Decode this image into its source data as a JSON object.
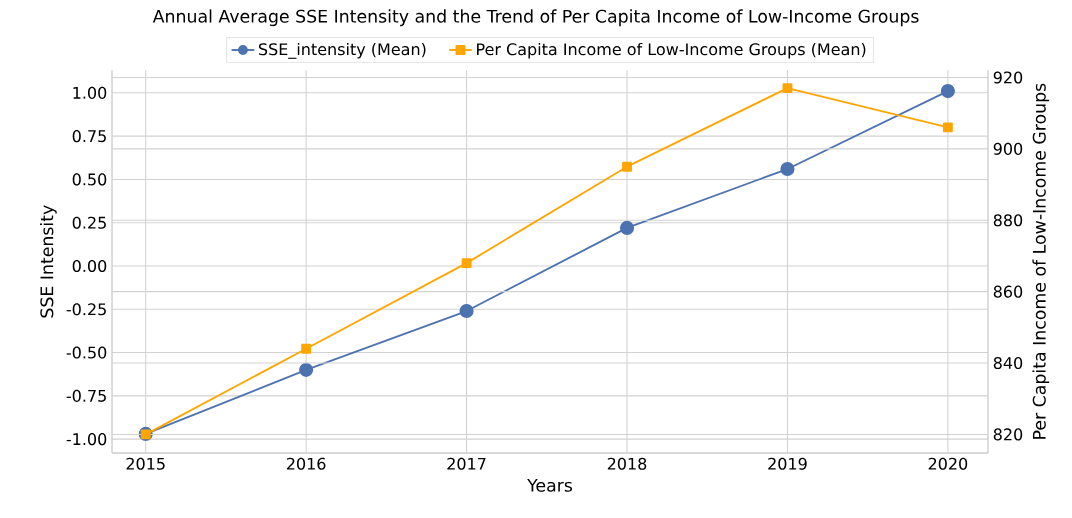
{
  "chart_data": {
    "type": "line",
    "title": "Annual Average SSE Intensity and the Trend of Per Capita Income of Low-Income Groups",
    "xlabel": "Years",
    "ylabel": "SSE Intensity",
    "y2label": "Per Capita Income of Low-Income Groups",
    "x": [
      2015,
      2016,
      2017,
      2018,
      2019,
      2020
    ],
    "series": [
      {
        "name": "SSE_intensity (Mean)",
        "color": "#4c72b0",
        "marker": "circle",
        "values": [
          -0.97,
          -0.6,
          -0.26,
          0.22,
          0.56,
          1.01
        ]
      },
      {
        "name": "Per Capita Income of Low-Income Groups (Mean)",
        "color": "#ffa500",
        "marker": "square",
        "axis": "y2",
        "values": [
          820,
          844,
          868,
          895,
          917,
          906
        ]
      }
    ],
    "xlim": [
      2014.79,
      2020.25
    ],
    "xticks": [
      2015,
      2016,
      2017,
      2018,
      2019,
      2020
    ],
    "ylim": [
      -1.08,
      1.13
    ],
    "yticks": [
      {
        "value": -1,
        "label": "-1.00"
      },
      {
        "value": -0.75,
        "label": "-0.75"
      },
      {
        "value": -0.5,
        "label": "-0.50"
      },
      {
        "value": -0.25,
        "label": "-0.25"
      },
      {
        "value": 0,
        "label": "0.00"
      },
      {
        "value": 0.25,
        "label": "0.25"
      },
      {
        "value": 0.5,
        "label": "0.50"
      },
      {
        "value": 0.75,
        "label": "0.75"
      },
      {
        "value": 1,
        "label": "1.00"
      }
    ],
    "y2lim": [
      814.8,
      922
    ],
    "y2ticks": [
      820,
      840,
      860,
      880,
      900,
      920
    ],
    "grid": true,
    "legend": "top",
    "line_style": "solid"
  }
}
